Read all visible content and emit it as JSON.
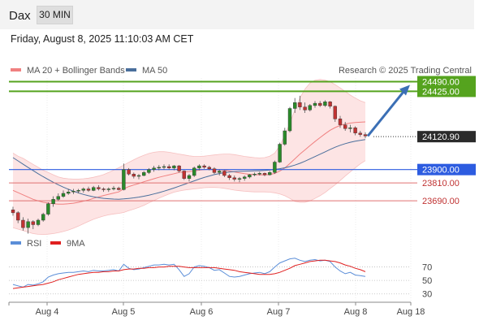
{
  "header": {
    "symbol": "Dax",
    "timeframe": "30 MIN",
    "datetime": "Friday, August 8, 2025 11:10:03 AM CET"
  },
  "legend": {
    "ma20": "MA 20 + Bollinger Bands",
    "ma50": "MA 50",
    "credit": "Research © 2025 Trading Central",
    "rsi": "RSI",
    "rsi_ma": "9MA"
  },
  "colors": {
    "candle_up": "#2a8a2a",
    "candle_down": "#c03232",
    "ma20": "#f08080",
    "ma50": "#4a6f9c",
    "band_fill": "#fde3e3",
    "target": "#55a31e",
    "pivot": "#2d5ce0",
    "support": "#e07070",
    "arrow": "#3b6fb5",
    "rsi": "#5b8ed8",
    "rsi_ma": "#e02020"
  },
  "chart_data": {
    "type": "candlestick",
    "x_labels": [
      "Aug 4",
      "Aug 5",
      "Aug 6",
      "Aug 7",
      "Aug 8",
      "Aug 18"
    ],
    "price_levels": [
      {
        "value": 24490.0,
        "label": "24490.00",
        "style": "target"
      },
      {
        "value": 24425.0,
        "label": "24425.00",
        "style": "target"
      },
      {
        "value": 24120.9,
        "label": "24120.90",
        "style": "last"
      },
      {
        "value": 23900.0,
        "label": "23900.00",
        "style": "pivot"
      },
      {
        "value": 23810.0,
        "label": "23810.00",
        "style": "support"
      },
      {
        "value": 23690.0,
        "label": "23690.00",
        "style": "support"
      }
    ],
    "candles": [
      [
        23630,
        23650,
        23590,
        23610
      ],
      [
        23610,
        23620,
        23540,
        23560
      ],
      [
        23560,
        23580,
        23490,
        23510
      ],
      [
        23510,
        23570,
        23470,
        23550
      ],
      [
        23550,
        23560,
        23500,
        23530
      ],
      [
        23530,
        23570,
        23520,
        23560
      ],
      [
        23560,
        23610,
        23550,
        23600
      ],
      [
        23600,
        23680,
        23590,
        23670
      ],
      [
        23670,
        23720,
        23650,
        23700
      ],
      [
        23700,
        23740,
        23690,
        23720
      ],
      [
        23720,
        23760,
        23710,
        23740
      ],
      [
        23740,
        23770,
        23730,
        23750
      ],
      [
        23750,
        23770,
        23735,
        23755
      ],
      [
        23755,
        23770,
        23740,
        23760
      ],
      [
        23760,
        23780,
        23745,
        23770
      ],
      [
        23770,
        23785,
        23750,
        23760
      ],
      [
        23760,
        23790,
        23755,
        23780
      ],
      [
        23780,
        23795,
        23760,
        23770
      ],
      [
        23770,
        23780,
        23750,
        23765
      ],
      [
        23765,
        23780,
        23750,
        23770
      ],
      [
        23770,
        23790,
        23760,
        23775
      ],
      [
        23775,
        23785,
        23760,
        23765
      ],
      [
        23765,
        23940,
        23760,
        23900
      ],
      [
        23900,
        23910,
        23860,
        23870
      ],
      [
        23870,
        23880,
        23840,
        23855
      ],
      [
        23855,
        23870,
        23835,
        23860
      ],
      [
        23860,
        23890,
        23855,
        23880
      ],
      [
        23880,
        23910,
        23870,
        23900
      ],
      [
        23900,
        23925,
        23885,
        23910
      ],
      [
        23910,
        23930,
        23895,
        23915
      ],
      [
        23915,
        23935,
        23900,
        23920
      ],
      [
        23920,
        23935,
        23900,
        23910
      ],
      [
        23910,
        23930,
        23895,
        23925
      ],
      [
        23925,
        23930,
        23880,
        23890
      ],
      [
        23890,
        23895,
        23830,
        23840
      ],
      [
        23840,
        23870,
        23820,
        23860
      ],
      [
        23860,
        23920,
        23850,
        23910
      ],
      [
        23910,
        23935,
        23895,
        23925
      ],
      [
        23925,
        23935,
        23905,
        23915
      ],
      [
        23915,
        23925,
        23895,
        23905
      ],
      [
        23905,
        23915,
        23870,
        23880
      ],
      [
        23880,
        23900,
        23860,
        23890
      ],
      [
        23890,
        23895,
        23850,
        23860
      ],
      [
        23860,
        23870,
        23830,
        23845
      ],
      [
        23845,
        23860,
        23820,
        23835
      ],
      [
        23835,
        23850,
        23815,
        23840
      ],
      [
        23840,
        23860,
        23825,
        23850
      ],
      [
        23850,
        23870,
        23840,
        23865
      ],
      [
        23865,
        23880,
        23855,
        23870
      ],
      [
        23870,
        23885,
        23860,
        23875
      ],
      [
        23875,
        23880,
        23855,
        23865
      ],
      [
        23865,
        23890,
        23860,
        23880
      ],
      [
        23880,
        23960,
        23870,
        23950
      ],
      [
        23950,
        24080,
        23945,
        24070
      ],
      [
        24070,
        24180,
        24060,
        24160
      ],
      [
        24160,
        24320,
        24150,
        24310
      ],
      [
        24310,
        24380,
        24280,
        24350
      ],
      [
        24350,
        24395,
        24300,
        24320
      ],
      [
        24320,
        24350,
        24280,
        24300
      ],
      [
        24300,
        24340,
        24290,
        24330
      ],
      [
        24330,
        24360,
        24315,
        24345
      ],
      [
        24345,
        24360,
        24320,
        24330
      ],
      [
        24330,
        24365,
        24320,
        24355
      ],
      [
        24355,
        24360,
        24310,
        24325
      ],
      [
        24325,
        24330,
        24220,
        24240
      ],
      [
        24240,
        24260,
        24180,
        24200
      ],
      [
        24200,
        24220,
        24160,
        24175
      ],
      [
        24175,
        24200,
        24150,
        24180
      ],
      [
        24180,
        24190,
        24130,
        24145
      ],
      [
        24145,
        24160,
        24120,
        24135
      ],
      [
        24135,
        24150,
        24110,
        24125
      ]
    ],
    "ma20": [
      23760,
      23745,
      23730,
      23715,
      23700,
      23690,
      23680,
      23675,
      23670,
      23668,
      23668,
      23670,
      23674,
      23680,
      23688,
      23696,
      23706,
      23716,
      23726,
      23734,
      23742,
      23750,
      23770,
      23786,
      23796,
      23806,
      23818,
      23828,
      23838,
      23848,
      23856,
      23864,
      23872,
      23880,
      23884,
      23886,
      23890,
      23896,
      23900,
      23902,
      23902,
      23900,
      23896,
      23890,
      23884,
      23878,
      23872,
      23868,
      23866,
      23864,
      23864,
      23866,
      23874,
      23890,
      23910,
      23940,
      23972,
      24004,
      24032,
      24060,
      24088,
      24114,
      24140,
      24164,
      24182,
      24196,
      24206,
      24212,
      24216,
      24218,
      24220
    ],
    "ma50": [
      23980,
      23958,
      23936,
      23914,
      23893,
      23872,
      23852,
      23833,
      23815,
      23798,
      23782,
      23768,
      23755,
      23743,
      23733,
      23724,
      23717,
      23711,
      23707,
      23704,
      23702,
      23701,
      23703,
      23706,
      23710,
      23715,
      23721,
      23728,
      23736,
      23745,
      23755,
      23765,
      23776,
      23788,
      23800,
      23812,
      23824,
      23836,
      23847,
      23857,
      23866,
      23873,
      23879,
      23883,
      23886,
      23888,
      23889,
      23890,
      23891,
      23892,
      23894,
      23897,
      23901,
      23906,
      23912,
      23920,
      23930,
      23942,
      23956,
      23971,
      23987,
      24003,
      24019,
      24035,
      24050,
      24063,
      24074,
      24083,
      24090,
      24096,
      24101
    ],
    "bollinger_upper": [
      24010,
      23990,
      23975,
      23955,
      23935,
      23915,
      23895,
      23880,
      23865,
      23850,
      23842,
      23838,
      23836,
      23836,
      23838,
      23842,
      23848,
      23856,
      23866,
      23880,
      23896,
      23912,
      23930,
      23948,
      23966,
      23982,
      23996,
      24008,
      24016,
      24020,
      24020,
      24016,
      24010,
      24004,
      23998,
      23992,
      23988,
      23988,
      23990,
      23994,
      23998,
      24002,
      24004,
      24004,
      24000,
      23994,
      23988,
      23984,
      23980,
      23978,
      23980,
      23990,
      24010,
      24060,
      24130,
      24210,
      24300,
      24380,
      24440,
      24480,
      24500,
      24505,
      24500,
      24490,
      24470,
      24448,
      24424,
      24400,
      24380,
      24362,
      24350
    ],
    "bollinger_lower": [
      23510,
      23500,
      23490,
      23480,
      23470,
      23465,
      23464,
      23466,
      23470,
      23476,
      23484,
      23494,
      23506,
      23520,
      23536,
      23552,
      23566,
      23578,
      23588,
      23596,
      23602,
      23606,
      23612,
      23624,
      23634,
      23646,
      23660,
      23676,
      23692,
      23708,
      23722,
      23736,
      23748,
      23756,
      23762,
      23766,
      23770,
      23774,
      23778,
      23780,
      23780,
      23778,
      23774,
      23768,
      23762,
      23758,
      23754,
      23752,
      23750,
      23750,
      23750,
      23748,
      23744,
      23736,
      23724,
      23706,
      23686,
      23680,
      23680,
      23690,
      23706,
      23724,
      23746,
      23772,
      23798,
      23826,
      23856,
      23884,
      23912,
      23938,
      23960
    ],
    "rsi": [
      44,
      42,
      40,
      44,
      43,
      45,
      48,
      55,
      58,
      60,
      61,
      62,
      62,
      63,
      64,
      63,
      65,
      64,
      64,
      65,
      66,
      64,
      74,
      68,
      66,
      67,
      69,
      71,
      73,
      73,
      74,
      73,
      74,
      66,
      56,
      60,
      70,
      72,
      71,
      69,
      65,
      66,
      61,
      56,
      55,
      56,
      58,
      60,
      61,
      62,
      60,
      63,
      70,
      76,
      79,
      82,
      83,
      80,
      78,
      80,
      81,
      79,
      80,
      78,
      70,
      64,
      60,
      62,
      58,
      57,
      56
    ],
    "rsi_ma": [
      38,
      39,
      40,
      41,
      42,
      43,
      44,
      46,
      48,
      51,
      53,
      55,
      57,
      59,
      60,
      61,
      62,
      62,
      63,
      63,
      64,
      64,
      66,
      67,
      67,
      68,
      68,
      69,
      69,
      70,
      70,
      71,
      71,
      71,
      70,
      69,
      69,
      69,
      69,
      69,
      69,
      68,
      67,
      66,
      65,
      63,
      62,
      61,
      60,
      59,
      59,
      59,
      60,
      62,
      65,
      68,
      72,
      74,
      76,
      78,
      79,
      80,
      80,
      79,
      78,
      76,
      73,
      71,
      68,
      66,
      63
    ],
    "rsi_levels": [
      70,
      50,
      30
    ],
    "y_range": [
      23500,
      24520
    ],
    "rsi_range": [
      20,
      90
    ]
  }
}
